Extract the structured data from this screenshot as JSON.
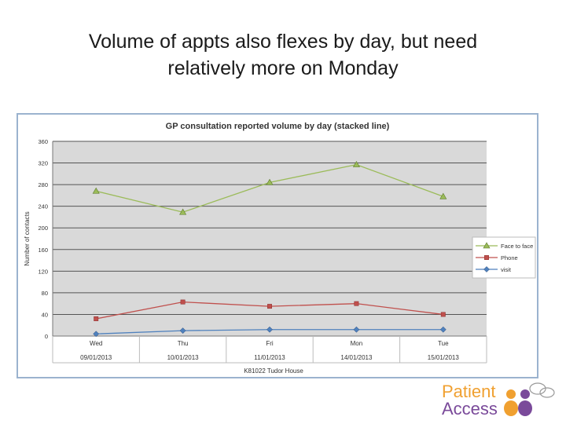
{
  "slide": {
    "title_line1": "Volume of appts also flexes by day, but need",
    "title_line2": "relatively more on Monday"
  },
  "logo": {
    "word1": "Patient",
    "word2": "Access",
    "color_orange": "#f0a030",
    "color_purple": "#7a4a9a"
  },
  "chart_data": {
    "type": "line",
    "title": "GP consultation reported volume by day (stacked line)",
    "ylabel": "Number of contacts",
    "ylim": [
      0,
      360
    ],
    "yticks": [
      0,
      40,
      80,
      120,
      160,
      200,
      240,
      280,
      320,
      360
    ],
    "categories": [
      "Wed",
      "Thu",
      "Fri",
      "Mon",
      "Tue"
    ],
    "dates": [
      "09/01/2013",
      "10/01/2013",
      "11/01/2013",
      "14/01/2013",
      "15/01/2013"
    ],
    "group_label": "K81022 Tudor House",
    "grid": true,
    "legend_position": "right",
    "series": [
      {
        "name": "Face to face",
        "values": [
          268,
          229,
          284,
          317,
          258
        ],
        "color": "#9bbb59",
        "marker": "triangle"
      },
      {
        "name": "Phone",
        "values": [
          32,
          63,
          55,
          60,
          40
        ],
        "color": "#c0504d",
        "marker": "square"
      },
      {
        "name": "visit",
        "values": [
          4,
          10,
          12,
          12,
          12
        ],
        "color": "#4f81bd",
        "marker": "diamond"
      }
    ]
  }
}
